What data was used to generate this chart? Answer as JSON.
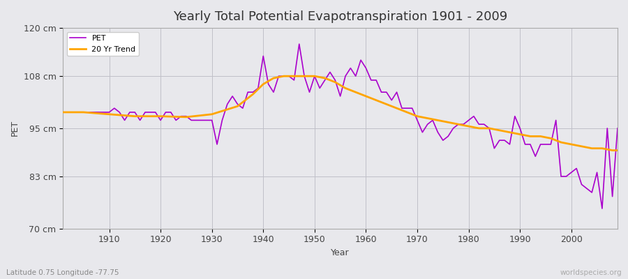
{
  "title": "Yearly Total Potential Evapotranspiration 1901 - 2009",
  "xlabel": "Year",
  "ylabel": "PET",
  "subtitle": "Latitude 0.75 Longitude -77.75",
  "watermark": "worldspecies.org",
  "ylim": [
    70,
    120
  ],
  "yticks": [
    70,
    83,
    95,
    108,
    120
  ],
  "ytick_labels": [
    "70 cm",
    "83 cm",
    "95 cm",
    "108 cm",
    "120 cm"
  ],
  "pet_color": "#AA00CC",
  "trend_color": "#FFA500",
  "background_color": "#E8E8EC",
  "pet_years": [
    1901,
    1902,
    1903,
    1904,
    1905,
    1906,
    1907,
    1908,
    1909,
    1910,
    1911,
    1912,
    1913,
    1914,
    1915,
    1916,
    1917,
    1918,
    1919,
    1920,
    1921,
    1922,
    1923,
    1924,
    1925,
    1926,
    1927,
    1928,
    1929,
    1930,
    1931,
    1932,
    1933,
    1934,
    1935,
    1936,
    1937,
    1938,
    1939,
    1940,
    1941,
    1942,
    1943,
    1944,
    1945,
    1946,
    1947,
    1948,
    1949,
    1950,
    1951,
    1952,
    1953,
    1954,
    1955,
    1956,
    1957,
    1958,
    1959,
    1960,
    1961,
    1962,
    1963,
    1964,
    1965,
    1966,
    1967,
    1968,
    1969,
    1970,
    1971,
    1972,
    1973,
    1974,
    1975,
    1976,
    1977,
    1978,
    1979,
    1980,
    1981,
    1982,
    1983,
    1984,
    1985,
    1986,
    1987,
    1988,
    1989,
    1990,
    1991,
    1992,
    1993,
    1994,
    1995,
    1996,
    1997,
    1998,
    1999,
    2000,
    2001,
    2002,
    2003,
    2004,
    2005,
    2006,
    2007,
    2008,
    2009
  ],
  "pet_values": [
    99,
    99,
    99,
    99,
    99,
    99,
    99,
    99,
    99,
    99,
    100,
    99,
    97,
    99,
    99,
    97,
    99,
    99,
    99,
    97,
    99,
    99,
    97,
    98,
    98,
    97,
    97,
    97,
    97,
    97,
    91,
    97,
    101,
    103,
    101,
    100,
    104,
    104,
    105,
    113,
    106,
    104,
    108,
    108,
    108,
    107,
    116,
    108,
    104,
    108,
    105,
    107,
    109,
    107,
    103,
    108,
    110,
    108,
    112,
    110,
    107,
    107,
    104,
    104,
    102,
    104,
    100,
    100,
    100,
    97,
    94,
    96,
    97,
    94,
    92,
    93,
    95,
    96,
    96,
    97,
    98,
    96,
    96,
    95,
    90,
    92,
    92,
    91,
    98,
    95,
    91,
    91,
    88,
    91,
    91,
    91,
    97,
    83,
    83,
    84,
    85,
    81,
    80,
    79,
    84,
    75,
    95,
    78,
    95
  ],
  "trend_years": [
    1901,
    1905,
    1910,
    1915,
    1920,
    1925,
    1930,
    1935,
    1938,
    1940,
    1942,
    1944,
    1946,
    1948,
    1950,
    1952,
    1954,
    1956,
    1958,
    1960,
    1962,
    1964,
    1966,
    1968,
    1970,
    1972,
    1974,
    1976,
    1978,
    1980,
    1982,
    1984,
    1986,
    1988,
    1990,
    1992,
    1994,
    1996,
    1998,
    2000,
    2002,
    2004,
    2006,
    2008,
    2009
  ],
  "trend_values": [
    99,
    99,
    98.5,
    98,
    98,
    97.8,
    98.5,
    100.5,
    103.5,
    106,
    107.5,
    108,
    108,
    108,
    108,
    107.5,
    106.5,
    105,
    104,
    103,
    102,
    101,
    100,
    99,
    98,
    97.5,
    97,
    96.5,
    96,
    95.5,
    95,
    95,
    94.5,
    94,
    93.5,
    93,
    93,
    92.5,
    91.5,
    91,
    90.5,
    90,
    90,
    89.5,
    89.5
  ]
}
